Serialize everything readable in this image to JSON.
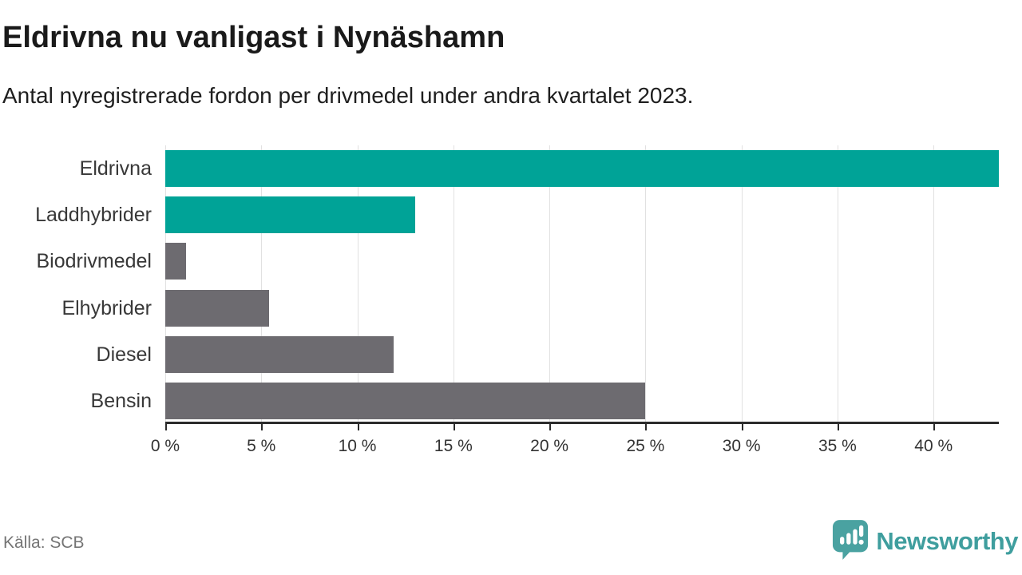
{
  "header": {
    "title": "Eldrivna nu vanligast i Nynäshamn",
    "subtitle": "Antal nyregistrerade fordon per drivmedel under andra kvartalet 2023."
  },
  "footer": {
    "source": "Källa: SCB",
    "brand": "Newsworthy"
  },
  "colors": {
    "highlight": "#00a397",
    "muted": "#6d6b70",
    "gridline": "#e1e1e1",
    "axis": "#2b2b2b",
    "brand_teal": "#3f9e9e",
    "logo_icon_teal": "#4aa2a1"
  },
  "chart_data": {
    "type": "bar",
    "orientation": "horizontal",
    "title": "Eldrivna nu vanligast i Nynäshamn",
    "subtitle": "Antal nyregistrerade fordon per drivmedel under andra kvartalet 2023.",
    "categories": [
      "Eldrivna",
      "Laddhybrider",
      "Biodrivmedel",
      "Elhybrider",
      "Diesel",
      "Bensin"
    ],
    "values": [
      43.4,
      13.0,
      1.1,
      5.4,
      11.9,
      25.0
    ],
    "unit": "%",
    "bar_colors": [
      "#00a397",
      "#00a397",
      "#6d6b70",
      "#6d6b70",
      "#6d6b70",
      "#6d6b70"
    ],
    "xlabel": "",
    "ylabel": "",
    "xlim": [
      0,
      43.4
    ],
    "x_ticks": [
      0,
      5,
      10,
      15,
      20,
      25,
      30,
      35,
      40
    ],
    "x_tick_labels": [
      "0 %",
      "5 %",
      "10 %",
      "15 %",
      "20 %",
      "25 %",
      "30 %",
      "35 %",
      "40 %"
    ],
    "grid": true,
    "legend": false,
    "source": "Källa: SCB"
  }
}
